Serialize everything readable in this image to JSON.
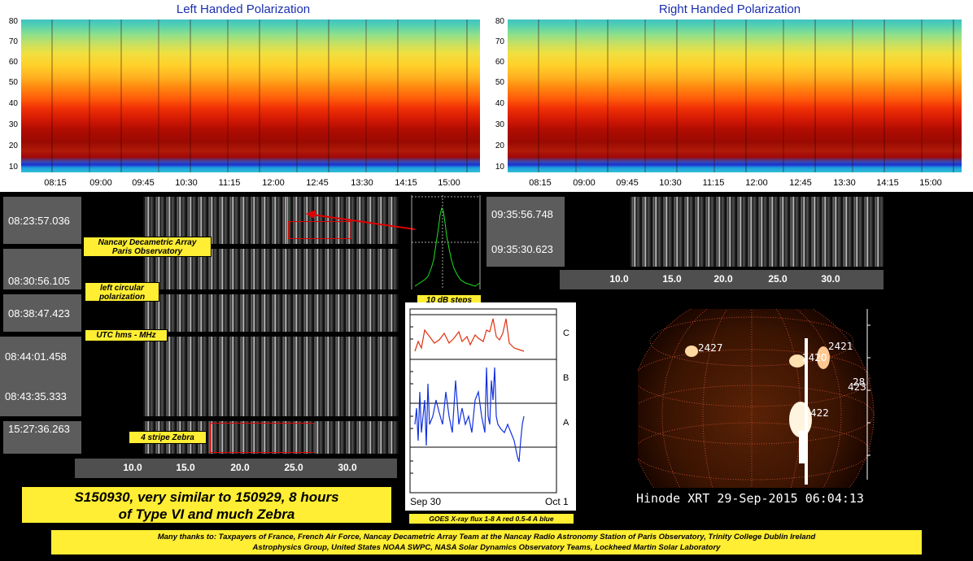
{
  "spectrograms": {
    "left": {
      "title": "Left Handed Polarization"
    },
    "right": {
      "title": "Right Handed Polarization"
    },
    "y_ticks": [
      "80",
      "70",
      "60",
      "50",
      "40",
      "30",
      "20",
      "10"
    ],
    "x_ticks": [
      "08:15",
      "09:00",
      "09:45",
      "10:30",
      "11:15",
      "12:00",
      "12:45",
      "13:30",
      "14:15",
      "15:00"
    ]
  },
  "timestamps": {
    "t1": "08:23:57.036",
    "t2": "08:30:56.105",
    "t3": "08:38:47.423",
    "t4": "08:44:01.458",
    "t5": "08:43:35.333",
    "t6": "15:27:36.263",
    "t7": "09:35:56.748",
    "t8": "09:35:30.623"
  },
  "labels": {
    "nancay": "Nancay Decametric Array Paris Observatory",
    "lcp": "left circular polarization",
    "utc": "UTC hms - MHz",
    "zebra": "4 stripe Zebra",
    "db": "10 dB steps",
    "goes": "GOES X-ray flux 1-8 A red 0.5-4 A blue"
  },
  "freq_axis": {
    "left_ticks": [
      "10.0",
      "15.0",
      "20.0",
      "25.0",
      "30.0"
    ],
    "right_ticks": [
      "10.0",
      "15.0",
      "20.0",
      "25.0",
      "30.0"
    ]
  },
  "goes_plot": {
    "classes": [
      "C",
      "B",
      "A"
    ],
    "x_start": "Sep 30",
    "x_end": "Oct 1",
    "colors": {
      "red": "#e03010",
      "blue": "#1030e0"
    }
  },
  "xrt": {
    "caption": "Hinode XRT 29-Sep-2015 06:04:13",
    "regions": [
      "2427",
      "2420",
      "2421",
      "28",
      "423",
      "422"
    ]
  },
  "title_banner": {
    "line1": "S150930, very similar to 150929, 8 hours",
    "line2": "of Type VI and much Zebra"
  },
  "credits": {
    "line1": "Many thanks to: Taxpayers of France, French Air Force, Nancay Decametric Array Team at the Nancay Radio Astronomy Station of Paris Observatory, Trinity College Dublin Ireland",
    "line2": "Astrophysics Group, United States NOAA SWPC, NASA Solar Dynamics Observatory Teams, Lockheed Martin Solar Laboratory"
  }
}
